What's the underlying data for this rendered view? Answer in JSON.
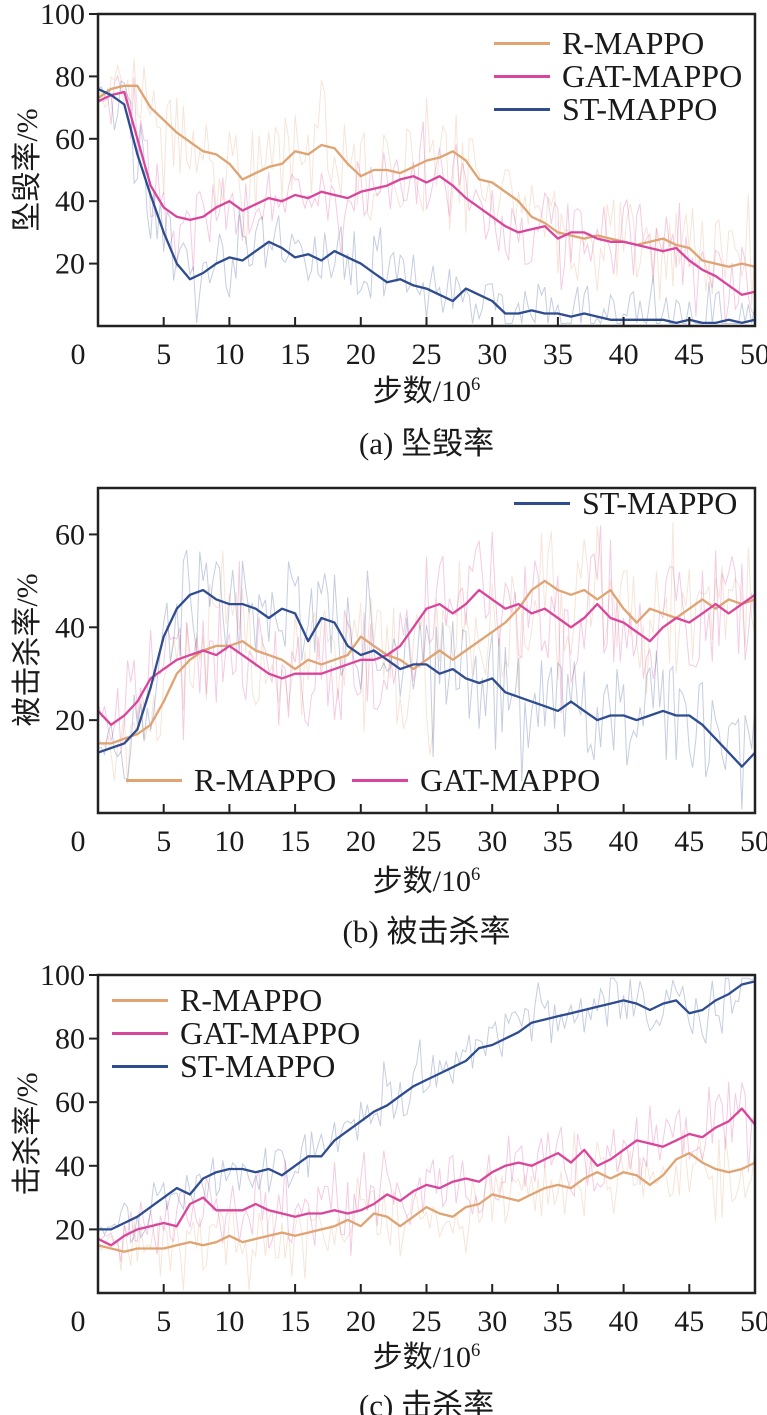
{
  "colors": {
    "r_mappo": "#E0A372",
    "gat_mappo": "#D9459B",
    "st_mappo": "#2E4C8F",
    "axis": "#222222"
  },
  "chart_data": [
    {
      "type": "line",
      "id": "crash-rate",
      "caption": "(a) 坠毁率",
      "ylabel": "坠毁率/%",
      "xlabel_base": "步数/10",
      "xlabel_exp": "6",
      "xlim": [
        0,
        50
      ],
      "ylim": [
        0,
        100
      ],
      "xticks": [
        0,
        5,
        10,
        15,
        20,
        25,
        30,
        35,
        40,
        45,
        50
      ],
      "yticks": [
        20,
        40,
        60,
        80,
        100
      ],
      "legend_position": "top-right",
      "series": [
        {
          "name": "R-MAPPO",
          "color": "#E0A372",
          "noise_amp": 14,
          "values": [
            73,
            76,
            77,
            77,
            70,
            66,
            62,
            59,
            56,
            55,
            52,
            47,
            49,
            51,
            52,
            56,
            55,
            58,
            57,
            52,
            48,
            50,
            50,
            49,
            51,
            53,
            54,
            56,
            53,
            47,
            46,
            43,
            40,
            35,
            33,
            30,
            29,
            28,
            29,
            28,
            27,
            26,
            27,
            28,
            26,
            25,
            21,
            20,
            19,
            20,
            19
          ]
        },
        {
          "name": "GAT-MAPPO",
          "color": "#D9459B",
          "noise_amp": 11,
          "values": [
            72,
            74,
            75,
            60,
            45,
            38,
            35,
            34,
            35,
            38,
            40,
            37,
            39,
            41,
            40,
            42,
            41,
            43,
            42,
            41,
            43,
            44,
            45,
            47,
            48,
            46,
            48,
            45,
            41,
            38,
            35,
            32,
            30,
            31,
            32,
            28,
            30,
            30,
            28,
            27,
            27,
            26,
            25,
            24,
            25,
            21,
            18,
            16,
            13,
            10,
            11
          ]
        },
        {
          "name": "ST-MAPPO",
          "color": "#2E4C8F",
          "noise_amp": 10,
          "values": [
            76,
            74,
            71,
            55,
            42,
            30,
            20,
            15,
            17,
            20,
            22,
            21,
            24,
            27,
            25,
            22,
            23,
            21,
            24,
            22,
            20,
            17,
            14,
            15,
            13,
            12,
            10,
            8,
            12,
            10,
            8,
            4,
            4,
            5,
            4,
            4,
            3,
            4,
            3,
            2,
            2,
            2,
            2,
            2,
            1,
            2,
            1,
            1,
            2,
            1,
            2
          ]
        }
      ]
    },
    {
      "type": "line",
      "id": "killed-rate",
      "caption": "(b) 被击杀率",
      "ylabel": "被击杀率/%",
      "xlabel_base": "步数/10",
      "xlabel_exp": "6",
      "xlim": [
        0,
        50
      ],
      "ylim": [
        0,
        70
      ],
      "xticks": [
        0,
        5,
        10,
        15,
        20,
        25,
        30,
        35,
        40,
        45,
        50
      ],
      "yticks": [
        20,
        40,
        60
      ],
      "legend_position": "split",
      "series": [
        {
          "name": "R-MAPPO",
          "color": "#E0A372",
          "noise_amp": 12,
          "values": [
            15,
            15,
            16,
            17,
            19,
            24,
            30,
            33,
            35,
            36,
            36,
            37,
            35,
            34,
            33,
            31,
            33,
            32,
            33,
            34,
            38,
            36,
            34,
            33,
            31,
            33,
            35,
            33,
            35,
            37,
            39,
            41,
            44,
            48,
            50,
            48,
            47,
            48,
            46,
            48,
            44,
            41,
            44,
            43,
            42,
            44,
            46,
            44,
            46,
            45,
            46
          ]
        },
        {
          "name": "GAT-MAPPO",
          "color": "#D9459B",
          "noise_amp": 12,
          "values": [
            22,
            19,
            21,
            24,
            29,
            31,
            33,
            34,
            35,
            34,
            36,
            34,
            32,
            30,
            29,
            30,
            30,
            30,
            31,
            32,
            33,
            33,
            34,
            36,
            40,
            44,
            45,
            43,
            45,
            48,
            46,
            44,
            45,
            43,
            44,
            42,
            40,
            42,
            45,
            42,
            41,
            39,
            37,
            40,
            42,
            41,
            43,
            45,
            43,
            45,
            47
          ]
        },
        {
          "name": "ST-MAPPO",
          "color": "#2E4C8F",
          "noise_amp": 11,
          "values": [
            13,
            14,
            15,
            18,
            27,
            38,
            44,
            47,
            48,
            46,
            45,
            45,
            44,
            42,
            44,
            43,
            37,
            42,
            41,
            36,
            34,
            35,
            33,
            31,
            32,
            32,
            30,
            31,
            29,
            28,
            29,
            26,
            25,
            24,
            23,
            22,
            24,
            22,
            20,
            21,
            21,
            20,
            21,
            22,
            21,
            21,
            19,
            16,
            13,
            10,
            13
          ]
        }
      ]
    },
    {
      "type": "line",
      "id": "kill-rate",
      "caption": "(c) 击杀率",
      "ylabel": "击杀率/%",
      "xlabel_base": "步数/10",
      "xlabel_exp": "6",
      "xlim": [
        0,
        50
      ],
      "ylim": [
        0,
        100
      ],
      "xticks": [
        0,
        5,
        10,
        15,
        20,
        25,
        30,
        35,
        40,
        45,
        50
      ],
      "yticks": [
        20,
        40,
        60,
        80,
        100
      ],
      "legend_position": "top-left",
      "series": [
        {
          "name": "R-MAPPO",
          "color": "#E0A372",
          "noise_amp": 10,
          "values": [
            15,
            14,
            13,
            14,
            14,
            14,
            15,
            16,
            15,
            16,
            18,
            16,
            17,
            18,
            19,
            18,
            19,
            20,
            21,
            23,
            21,
            25,
            24,
            21,
            24,
            27,
            25,
            24,
            27,
            28,
            31,
            30,
            29,
            31,
            33,
            34,
            33,
            36,
            38,
            36,
            38,
            37,
            34,
            37,
            42,
            44,
            41,
            39,
            38,
            39,
            41
          ]
        },
        {
          "name": "GAT-MAPPO",
          "color": "#D9459B",
          "noise_amp": 10,
          "values": [
            17,
            15,
            18,
            20,
            21,
            22,
            21,
            28,
            30,
            26,
            26,
            26,
            28,
            26,
            25,
            24,
            25,
            25,
            26,
            25,
            26,
            28,
            31,
            29,
            32,
            34,
            33,
            35,
            36,
            35,
            38,
            40,
            41,
            40,
            42,
            44,
            41,
            45,
            40,
            42,
            45,
            48,
            47,
            46,
            48,
            50,
            49,
            52,
            54,
            58,
            53
          ]
        },
        {
          "name": "ST-MAPPO",
          "color": "#2E4C8F",
          "noise_amp": 8,
          "values": [
            20,
            20,
            22,
            24,
            27,
            30,
            33,
            31,
            36,
            38,
            39,
            39,
            38,
            39,
            37,
            40,
            43,
            43,
            48,
            51,
            54,
            57,
            59,
            62,
            65,
            67,
            69,
            71,
            73,
            77,
            78,
            80,
            82,
            85,
            86,
            87,
            88,
            89,
            90,
            91,
            92,
            91,
            89,
            91,
            92,
            88,
            89,
            92,
            94,
            97,
            98
          ]
        }
      ]
    }
  ]
}
